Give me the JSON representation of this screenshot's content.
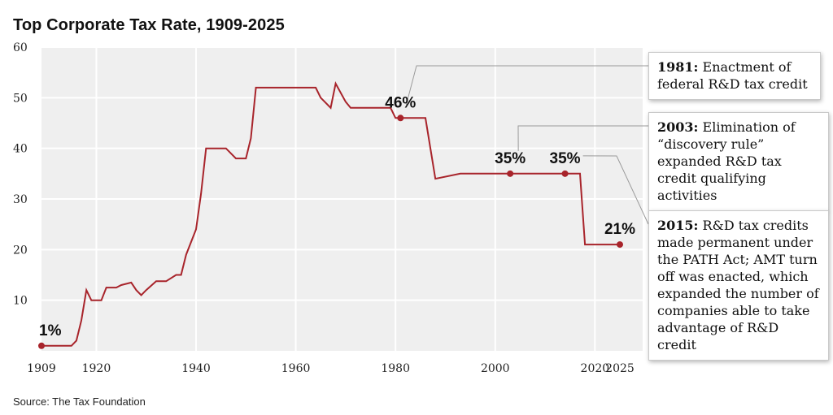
{
  "title": "Top Corporate Tax Rate, 1909-2025",
  "source": "Source: The Tax Foundation",
  "colors": {
    "line": "#a8242b",
    "plot_bg": "#efefef",
    "grid": "#ffffff",
    "leader": "#9a9a9a"
  },
  "chart_data": {
    "type": "line",
    "title": "Top Corporate Tax Rate, 1909-2025",
    "xlabel": "",
    "ylabel": "",
    "xlim": [
      1909,
      2025
    ],
    "ylim": [
      0,
      60
    ],
    "grid": true,
    "x_ticks": [
      1909,
      1920,
      1940,
      1960,
      1980,
      2000,
      2020,
      2025
    ],
    "y_ticks": [
      10,
      20,
      30,
      40,
      50,
      60
    ],
    "series": [
      {
        "x": [
          1909,
          1915,
          1916,
          1917,
          1918,
          1919,
          1920,
          1921,
          1922,
          1924,
          1925,
          1927,
          1928,
          1929,
          1930,
          1932,
          1934,
          1936,
          1937,
          1938,
          1940,
          1941,
          1942,
          1946,
          1948,
          1950,
          1951,
          1952,
          1964,
          1965,
          1967,
          1968,
          1970,
          1971,
          1979,
          1980,
          1986,
          1987,
          1988,
          1993,
          2017,
          2018,
          2025
        ],
        "y": [
          1,
          1,
          2,
          6,
          12,
          10,
          10,
          10,
          12.5,
          12.5,
          13,
          13.5,
          12,
          11,
          12,
          13.75,
          13.75,
          15,
          15,
          19,
          24,
          31,
          40,
          40,
          38,
          38,
          42,
          52,
          52,
          50,
          48,
          52.8,
          49.2,
          48,
          48,
          46,
          46,
          40,
          34,
          35,
          35,
          21,
          21
        ]
      }
    ],
    "highlighted_points": [
      {
        "x": 1909,
        "y": 1,
        "label": "1%"
      },
      {
        "x": 1981,
        "y": 46,
        "label": "46%"
      },
      {
        "x": 2003,
        "y": 35,
        "label": "35%"
      },
      {
        "x": 2014,
        "y": 35,
        "label": "35%"
      },
      {
        "x": 2025,
        "y": 21,
        "label": "21%"
      }
    ],
    "annotations": [
      {
        "year": "1981:",
        "text": "Enactment of federal R&D tax credit"
      },
      {
        "year": "2003:",
        "text": "Elimination of “discovery rule” expanded R&D tax credit qualifying activities"
      },
      {
        "year": "2015:",
        "text": "R&D tax credits made permanent under the PATH Act; AMT turn off was enacted, which expanded the number of companies able to take advantage of R&D credit"
      }
    ]
  }
}
